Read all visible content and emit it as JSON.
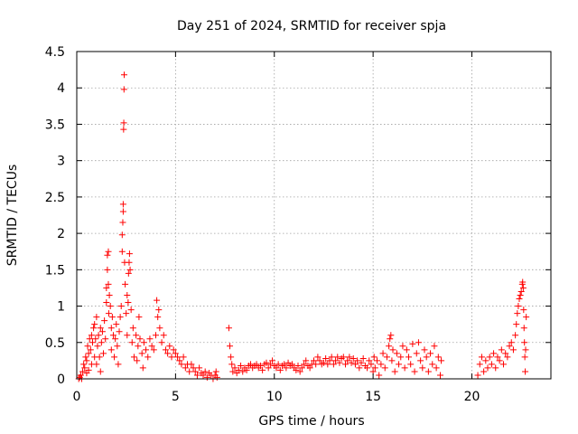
{
  "chart_data": {
    "type": "scatter",
    "title": "Day 251 of 2024, SRMTID for receiver spja",
    "xlabel": "GPS time / hours",
    "ylabel": "SRMTID / TECUs",
    "xlim": [
      0,
      24
    ],
    "ylim": [
      0,
      4.5
    ],
    "xticks": [
      0,
      5,
      10,
      15,
      20
    ],
    "xtick_labels": [
      "0",
      "5",
      "10",
      "15",
      "20"
    ],
    "yticks": [
      0,
      0.5,
      1,
      1.5,
      2,
      2.5,
      3,
      3.5,
      4,
      4.5
    ],
    "ytick_labels": [
      "0",
      "0.5",
      "1",
      "1.5",
      "2",
      "2.5",
      "3",
      "3.5",
      "4",
      "4.5"
    ],
    "grid": true,
    "marker": "+",
    "color": "#ff0000",
    "series": [
      {
        "name": "SRMTID",
        "points": [
          [
            0.1,
            0.0
          ],
          [
            0.15,
            0.02
          ],
          [
            0.2,
            0.05
          ],
          [
            0.25,
            0.0
          ],
          [
            0.3,
            0.1
          ],
          [
            0.35,
            0.2
          ],
          [
            0.4,
            0.15
          ],
          [
            0.45,
            0.3
          ],
          [
            0.5,
            0.25
          ],
          [
            0.5,
            0.08
          ],
          [
            0.55,
            0.45
          ],
          [
            0.6,
            0.35
          ],
          [
            0.6,
            0.12
          ],
          [
            0.65,
            0.55
          ],
          [
            0.7,
            0.4
          ],
          [
            0.75,
            0.6
          ],
          [
            0.75,
            0.2
          ],
          [
            0.8,
            0.5
          ],
          [
            0.85,
            0.7
          ],
          [
            0.9,
            0.3
          ],
          [
            0.9,
            0.75
          ],
          [
            0.95,
            0.55
          ],
          [
            1.0,
            0.85
          ],
          [
            1.0,
            0.2
          ],
          [
            1.05,
            0.45
          ],
          [
            1.1,
            0.6
          ],
          [
            1.15,
            0.3
          ],
          [
            1.2,
            0.7
          ],
          [
            1.2,
            0.1
          ],
          [
            1.25,
            0.5
          ],
          [
            1.3,
            0.65
          ],
          [
            1.35,
            0.35
          ],
          [
            1.4,
            0.8
          ],
          [
            1.45,
            0.55
          ],
          [
            1.5,
            1.05
          ],
          [
            1.5,
            1.25
          ],
          [
            1.55,
            1.5
          ],
          [
            1.55,
            1.7
          ],
          [
            1.6,
            1.75
          ],
          [
            1.6,
            1.3
          ],
          [
            1.62,
            0.9
          ],
          [
            1.65,
            1.15
          ],
          [
            1.7,
            1.0
          ],
          [
            1.75,
            0.4
          ],
          [
            1.75,
            0.7
          ],
          [
            1.8,
            0.85
          ],
          [
            1.85,
            0.6
          ],
          [
            1.9,
            0.3
          ],
          [
            1.95,
            0.55
          ],
          [
            2.0,
            0.75
          ],
          [
            2.05,
            0.45
          ],
          [
            2.1,
            0.2
          ],
          [
            2.15,
            0.65
          ],
          [
            2.2,
            0.85
          ],
          [
            2.25,
            1.0
          ],
          [
            2.3,
            1.75
          ],
          [
            2.3,
            1.98
          ],
          [
            2.33,
            2.15
          ],
          [
            2.35,
            2.3
          ],
          [
            2.35,
            2.4
          ],
          [
            2.37,
            3.43
          ],
          [
            2.38,
            3.52
          ],
          [
            2.39,
            3.98
          ],
          [
            2.4,
            4.18
          ],
          [
            2.42,
            1.6
          ],
          [
            2.45,
            1.3
          ],
          [
            2.5,
            0.9
          ],
          [
            2.55,
            0.6
          ],
          [
            2.55,
            1.15
          ],
          [
            2.6,
            1.05
          ],
          [
            2.62,
            1.45
          ],
          [
            2.65,
            1.6
          ],
          [
            2.67,
            1.72
          ],
          [
            2.7,
            1.5
          ],
          [
            2.75,
            0.95
          ],
          [
            2.8,
            0.5
          ],
          [
            2.85,
            0.7
          ],
          [
            2.9,
            0.3
          ],
          [
            3.0,
            0.6
          ],
          [
            3.05,
            0.25
          ],
          [
            3.1,
            0.45
          ],
          [
            3.15,
            0.85
          ],
          [
            3.2,
            0.55
          ],
          [
            3.3,
            0.35
          ],
          [
            3.35,
            0.15
          ],
          [
            3.4,
            0.5
          ],
          [
            3.5,
            0.4
          ],
          [
            3.6,
            0.3
          ],
          [
            3.7,
            0.55
          ],
          [
            3.8,
            0.45
          ],
          [
            3.9,
            0.4
          ],
          [
            4.0,
            0.6
          ],
          [
            4.05,
            1.08
          ],
          [
            4.1,
            0.85
          ],
          [
            4.15,
            0.95
          ],
          [
            4.2,
            0.7
          ],
          [
            4.3,
            0.5
          ],
          [
            4.4,
            0.6
          ],
          [
            4.5,
            0.4
          ],
          [
            4.6,
            0.35
          ],
          [
            4.7,
            0.45
          ],
          [
            4.8,
            0.3
          ],
          [
            4.9,
            0.4
          ],
          [
            5.0,
            0.35
          ],
          [
            5.1,
            0.3
          ],
          [
            5.2,
            0.25
          ],
          [
            5.3,
            0.2
          ],
          [
            5.4,
            0.3
          ],
          [
            5.5,
            0.15
          ],
          [
            5.6,
            0.2
          ],
          [
            5.7,
            0.1
          ],
          [
            5.8,
            0.2
          ],
          [
            5.9,
            0.15
          ],
          [
            6.0,
            0.1
          ],
          [
            6.1,
            0.05
          ],
          [
            6.2,
            0.15
          ],
          [
            6.3,
            0.08
          ],
          [
            6.4,
            0.05
          ],
          [
            6.5,
            0.1
          ],
          [
            6.6,
            0.02
          ],
          [
            6.7,
            0.08
          ],
          [
            6.8,
            0.05
          ],
          [
            6.9,
            0.0
          ],
          [
            7.0,
            0.05
          ],
          [
            7.05,
            0.1
          ],
          [
            7.1,
            0.02
          ],
          [
            7.7,
            0.7
          ],
          [
            7.75,
            0.45
          ],
          [
            7.8,
            0.3
          ],
          [
            7.85,
            0.2
          ],
          [
            7.9,
            0.1
          ],
          [
            8.0,
            0.15
          ],
          [
            8.1,
            0.08
          ],
          [
            8.2,
            0.12
          ],
          [
            8.3,
            0.18
          ],
          [
            8.4,
            0.1
          ],
          [
            8.5,
            0.15
          ],
          [
            8.6,
            0.12
          ],
          [
            8.7,
            0.18
          ],
          [
            8.8,
            0.2
          ],
          [
            8.9,
            0.15
          ],
          [
            9.0,
            0.18
          ],
          [
            9.1,
            0.2
          ],
          [
            9.2,
            0.15
          ],
          [
            9.3,
            0.18
          ],
          [
            9.4,
            0.12
          ],
          [
            9.5,
            0.2
          ],
          [
            9.6,
            0.22
          ],
          [
            9.7,
            0.15
          ],
          [
            9.8,
            0.2
          ],
          [
            9.9,
            0.25
          ],
          [
            10.0,
            0.18
          ],
          [
            10.1,
            0.15
          ],
          [
            10.2,
            0.2
          ],
          [
            10.3,
            0.12
          ],
          [
            10.4,
            0.18
          ],
          [
            10.5,
            0.2
          ],
          [
            10.6,
            0.15
          ],
          [
            10.7,
            0.22
          ],
          [
            10.8,
            0.18
          ],
          [
            10.9,
            0.2
          ],
          [
            11.0,
            0.15
          ],
          [
            11.1,
            0.12
          ],
          [
            11.2,
            0.18
          ],
          [
            11.3,
            0.1
          ],
          [
            11.4,
            0.15
          ],
          [
            11.5,
            0.2
          ],
          [
            11.6,
            0.25
          ],
          [
            11.7,
            0.18
          ],
          [
            11.8,
            0.15
          ],
          [
            11.9,
            0.2
          ],
          [
            12.0,
            0.25
          ],
          [
            12.1,
            0.2
          ],
          [
            12.2,
            0.3
          ],
          [
            12.3,
            0.25
          ],
          [
            12.4,
            0.2
          ],
          [
            12.5,
            0.22
          ],
          [
            12.6,
            0.28
          ],
          [
            12.7,
            0.2
          ],
          [
            12.8,
            0.25
          ],
          [
            12.9,
            0.3
          ],
          [
            13.0,
            0.2
          ],
          [
            13.1,
            0.25
          ],
          [
            13.2,
            0.3
          ],
          [
            13.3,
            0.22
          ],
          [
            13.4,
            0.28
          ],
          [
            13.5,
            0.3
          ],
          [
            13.6,
            0.2
          ],
          [
            13.7,
            0.25
          ],
          [
            13.8,
            0.3
          ],
          [
            13.9,
            0.22
          ],
          [
            14.0,
            0.28
          ],
          [
            14.1,
            0.2
          ],
          [
            14.2,
            0.25
          ],
          [
            14.3,
            0.15
          ],
          [
            14.4,
            0.22
          ],
          [
            14.5,
            0.28
          ],
          [
            14.6,
            0.18
          ],
          [
            14.7,
            0.15
          ],
          [
            14.8,
            0.25
          ],
          [
            14.9,
            0.2
          ],
          [
            15.0,
            0.1
          ],
          [
            15.05,
            0.3
          ],
          [
            15.1,
            0.15
          ],
          [
            15.2,
            0.25
          ],
          [
            15.3,
            0.05
          ],
          [
            15.4,
            0.2
          ],
          [
            15.5,
            0.35
          ],
          [
            15.6,
            0.15
          ],
          [
            15.7,
            0.3
          ],
          [
            15.8,
            0.45
          ],
          [
            15.85,
            0.55
          ],
          [
            15.9,
            0.6
          ],
          [
            15.95,
            0.25
          ],
          [
            16.0,
            0.4
          ],
          [
            16.1,
            0.1
          ],
          [
            16.2,
            0.35
          ],
          [
            16.3,
            0.2
          ],
          [
            16.4,
            0.3
          ],
          [
            16.5,
            0.45
          ],
          [
            16.6,
            0.15
          ],
          [
            16.7,
            0.4
          ],
          [
            16.8,
            0.3
          ],
          [
            16.9,
            0.2
          ],
          [
            17.0,
            0.48
          ],
          [
            17.1,
            0.1
          ],
          [
            17.2,
            0.35
          ],
          [
            17.3,
            0.5
          ],
          [
            17.4,
            0.25
          ],
          [
            17.5,
            0.15
          ],
          [
            17.6,
            0.4
          ],
          [
            17.7,
            0.3
          ],
          [
            17.8,
            0.1
          ],
          [
            17.9,
            0.35
          ],
          [
            18.0,
            0.2
          ],
          [
            18.1,
            0.45
          ],
          [
            18.2,
            0.15
          ],
          [
            18.3,
            0.3
          ],
          [
            18.4,
            0.05
          ],
          [
            18.45,
            0.25
          ],
          [
            20.3,
            0.05
          ],
          [
            20.4,
            0.2
          ],
          [
            20.5,
            0.3
          ],
          [
            20.6,
            0.1
          ],
          [
            20.7,
            0.25
          ],
          [
            20.8,
            0.15
          ],
          [
            20.9,
            0.3
          ],
          [
            21.0,
            0.2
          ],
          [
            21.1,
            0.35
          ],
          [
            21.2,
            0.15
          ],
          [
            21.3,
            0.3
          ],
          [
            21.4,
            0.25
          ],
          [
            21.5,
            0.4
          ],
          [
            21.6,
            0.2
          ],
          [
            21.7,
            0.35
          ],
          [
            21.8,
            0.3
          ],
          [
            21.9,
            0.45
          ],
          [
            22.0,
            0.5
          ],
          [
            22.1,
            0.4
          ],
          [
            22.2,
            0.6
          ],
          [
            22.25,
            0.75
          ],
          [
            22.3,
            0.9
          ],
          [
            22.35,
            1.0
          ],
          [
            22.4,
            1.1
          ],
          [
            22.45,
            1.15
          ],
          [
            22.5,
            1.2
          ],
          [
            22.55,
            1.3
          ],
          [
            22.57,
            1.33
          ],
          [
            22.6,
            1.25
          ],
          [
            22.62,
            0.95
          ],
          [
            22.64,
            0.7
          ],
          [
            22.66,
            0.5
          ],
          [
            22.68,
            0.3
          ],
          [
            22.7,
            0.1
          ],
          [
            22.72,
            0.4
          ],
          [
            22.75,
            0.85
          ]
        ]
      }
    ]
  }
}
